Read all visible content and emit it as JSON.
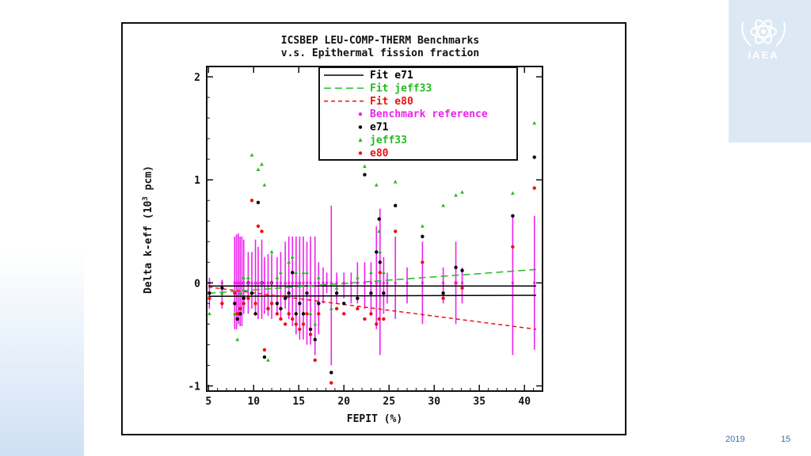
{
  "footer": {
    "year": "2019",
    "page": "15"
  },
  "logo": {
    "text": "IAEA",
    "icon": "iaea-atom-olive-icon"
  },
  "colors": {
    "e71": "#000000",
    "jeff33": "#22bb22",
    "e80": "#ee1111",
    "bench": "#ee22ee"
  },
  "chart_data": {
    "type": "scatter",
    "title": "ICSBEP LEU-COMP-THERM Benchmarks",
    "subtitle": "v.s. Epithermal fission fraction",
    "xlabel": "FEPIT (%)",
    "ylabel": "Delta k-eff (10^3 pcm)",
    "ylabel_parts": {
      "main": "Delta k-eff (10",
      "sup": "3",
      "end": " pcm)"
    },
    "xlim": [
      4.8,
      42
    ],
    "ylim": [
      -1.05,
      2.1
    ],
    "xticks": [
      5,
      10,
      15,
      20,
      25,
      30,
      35,
      40
    ],
    "yticks": [
      -1,
      0,
      1,
      2
    ],
    "legend_position": "top-center",
    "legend": [
      {
        "label": "Fit e71",
        "kind": "line",
        "series": "e71"
      },
      {
        "label": "Fit jeff33",
        "kind": "line",
        "series": "jeff33"
      },
      {
        "label": "Fit e80",
        "kind": "line",
        "series": "e80"
      },
      {
        "label": "Benchmark reference",
        "kind": "marker",
        "series": "bench"
      },
      {
        "label": "e71",
        "kind": "marker",
        "series": "e71"
      },
      {
        "label": "jeff33",
        "kind": "marker",
        "series": "jeff33"
      },
      {
        "label": "e80",
        "kind": "marker",
        "series": "e80"
      }
    ],
    "fits": [
      {
        "name": "Fit e71",
        "series": "e71",
        "dash": "solid",
        "x": [
          5,
          41.3
        ],
        "y": [
          -0.03,
          -0.03
        ]
      },
      {
        "name": "Fit e71",
        "series": "e71",
        "dash": "solid",
        "x": [
          5,
          41.3
        ],
        "y": [
          -0.13,
          -0.12
        ]
      },
      {
        "name": "Fit jeff33",
        "series": "jeff33",
        "dash": "dashed",
        "x": [
          5,
          41.3
        ],
        "y": [
          -0.1,
          0.13
        ]
      },
      {
        "name": "Fit e80",
        "series": "e80",
        "dash": "dotted",
        "x": [
          5,
          41.3
        ],
        "y": [
          -0.04,
          -0.45
        ]
      }
    ],
    "benchmark_errorbars": [
      {
        "x": 5.1,
        "lo": -0.25,
        "hi": 0.05
      },
      {
        "x": 6.5,
        "lo": -0.25,
        "hi": 0.03
      },
      {
        "x": 7.9,
        "lo": -0.45,
        "hi": 0.45
      },
      {
        "x": 8.1,
        "lo": -0.45,
        "hi": 0.47
      },
      {
        "x": 8.3,
        "lo": -0.4,
        "hi": 0.48
      },
      {
        "x": 8.5,
        "lo": -0.42,
        "hi": 0.45
      },
      {
        "x": 8.7,
        "lo": -0.42,
        "hi": 0.45
      },
      {
        "x": 8.9,
        "lo": -0.3,
        "hi": 0.42
      },
      {
        "x": 9.4,
        "lo": -0.3,
        "hi": 0.3
      },
      {
        "x": 9.8,
        "lo": -0.25,
        "hi": 0.3
      },
      {
        "x": 10.2,
        "lo": -0.3,
        "hi": 0.42
      },
      {
        "x": 10.5,
        "lo": -0.35,
        "hi": 0.35
      },
      {
        "x": 10.9,
        "lo": -0.35,
        "hi": 0.42
      },
      {
        "x": 11.2,
        "lo": -0.3,
        "hi": 0.25
      },
      {
        "x": 11.6,
        "lo": -0.32,
        "hi": 0.28
      },
      {
        "x": 12.0,
        "lo": -0.35,
        "hi": 0.28
      },
      {
        "x": 12.6,
        "lo": -0.3,
        "hi": 0.25
      },
      {
        "x": 13.0,
        "lo": -0.35,
        "hi": 0.3
      },
      {
        "x": 13.5,
        "lo": -0.25,
        "hi": 0.4
      },
      {
        "x": 13.9,
        "lo": -0.35,
        "hi": 0.45
      },
      {
        "x": 14.3,
        "lo": -0.42,
        "hi": 0.45
      },
      {
        "x": 14.7,
        "lo": -0.5,
        "hi": 0.45
      },
      {
        "x": 15.1,
        "lo": -0.55,
        "hi": 0.45
      },
      {
        "x": 15.5,
        "lo": -0.55,
        "hi": 0.45
      },
      {
        "x": 15.9,
        "lo": -0.6,
        "hi": 0.4
      },
      {
        "x": 16.3,
        "lo": -0.6,
        "hi": 0.45
      },
      {
        "x": 16.8,
        "lo": -0.7,
        "hi": 0.45
      },
      {
        "x": 17.2,
        "lo": -0.5,
        "hi": 0.2
      },
      {
        "x": 17.7,
        "lo": -0.2,
        "hi": 0.15
      },
      {
        "x": 18.1,
        "lo": -0.1,
        "hi": 0.1
      },
      {
        "x": 18.6,
        "lo": -0.8,
        "hi": 0.75
      },
      {
        "x": 19.2,
        "lo": -0.2,
        "hi": 0.1
      },
      {
        "x": 20.0,
        "lo": -0.15,
        "hi": 0.1
      },
      {
        "x": 20.8,
        "lo": -0.2,
        "hi": 0.1
      },
      {
        "x": 21.5,
        "lo": -0.2,
        "hi": 0.2
      },
      {
        "x": 22.3,
        "lo": -0.25,
        "hi": 0.2
      },
      {
        "x": 23.0,
        "lo": -0.3,
        "hi": 0.2
      },
      {
        "x": 23.6,
        "lo": -0.45,
        "hi": 0.55
      },
      {
        "x": 24.0,
        "lo": -0.7,
        "hi": 0.72
      },
      {
        "x": 24.4,
        "lo": -0.3,
        "hi": 0.25
      },
      {
        "x": 24.8,
        "lo": -0.2,
        "hi": 0.1
      },
      {
        "x": 25.7,
        "lo": -0.35,
        "hi": 0.45
      },
      {
        "x": 27.0,
        "lo": -0.2,
        "hi": 0.15
      },
      {
        "x": 28.7,
        "lo": -0.4,
        "hi": 0.4
      },
      {
        "x": 31.0,
        "lo": -0.2,
        "hi": 0.15
      },
      {
        "x": 32.4,
        "lo": -0.4,
        "hi": 0.4
      },
      {
        "x": 33.1,
        "lo": -0.2,
        "hi": 0.15
      },
      {
        "x": 38.7,
        "lo": -0.7,
        "hi": 0.65
      },
      {
        "x": 41.1,
        "lo": -0.65,
        "hi": 0.65
      }
    ],
    "series": [
      {
        "key": "e71",
        "name": "e71",
        "x": [
          5.1,
          6.5,
          7.9,
          8.2,
          8.5,
          8.9,
          9.4,
          9.8,
          10.2,
          10.5,
          10.9,
          11.2,
          11.6,
          12.0,
          12.6,
          13.0,
          13.5,
          13.9,
          14.3,
          14.7,
          15.1,
          15.5,
          15.9,
          16.3,
          16.8,
          17.2,
          18.6,
          19.2,
          20.0,
          21.5,
          22.3,
          23.0,
          23.6,
          23.9,
          24.0,
          24.4,
          25.7,
          28.7,
          31.0,
          32.4,
          33.1,
          38.7,
          41.1
        ],
        "y": [
          -0.1,
          -0.05,
          -0.2,
          -0.35,
          -0.3,
          -0.15,
          0.0,
          -0.1,
          -0.3,
          0.78,
          0.0,
          -0.72,
          -0.25,
          0.0,
          -0.2,
          -0.25,
          -0.15,
          -0.1,
          0.1,
          -0.3,
          -0.2,
          -0.3,
          -0.1,
          -0.45,
          -0.55,
          -0.2,
          -0.87,
          -0.1,
          -0.2,
          -0.15,
          1.05,
          -0.1,
          0.3,
          0.62,
          0.2,
          -0.1,
          0.75,
          0.45,
          -0.1,
          0.15,
          0.12,
          0.65,
          1.22
        ]
      },
      {
        "key": "jeff33",
        "name": "jeff33",
        "x": [
          5.1,
          6.5,
          7.9,
          8.2,
          8.5,
          8.9,
          9.4,
          9.8,
          10.2,
          10.5,
          10.9,
          11.2,
          11.6,
          12.0,
          12.6,
          13.0,
          13.5,
          13.9,
          14.3,
          14.7,
          15.1,
          15.5,
          15.9,
          16.3,
          16.8,
          17.2,
          18.6,
          19.2,
          20.0,
          21.5,
          22.3,
          23.0,
          23.6,
          23.9,
          24.0,
          24.4,
          25.7,
          28.7,
          31.0,
          32.4,
          33.1,
          38.7,
          41.1
        ],
        "y": [
          -0.3,
          -0.1,
          -0.3,
          -0.55,
          -0.1,
          0.05,
          0.05,
          1.24,
          0.0,
          1.1,
          1.15,
          0.95,
          -0.75,
          0.3,
          0.05,
          0.1,
          0.0,
          0.2,
          0.25,
          0.1,
          0.0,
          0.1,
          0.1,
          -0.3,
          -0.4,
          0.05,
          -0.25,
          -0.05,
          0.0,
          0.05,
          1.13,
          0.1,
          0.95,
          0.5,
          0.3,
          0.1,
          0.98,
          0.55,
          0.75,
          0.85,
          0.88,
          0.87,
          1.55
        ]
      },
      {
        "key": "e80",
        "name": "e80",
        "x": [
          5.1,
          6.5,
          7.9,
          8.2,
          8.5,
          8.9,
          9.4,
          9.8,
          10.2,
          10.5,
          10.9,
          11.2,
          11.6,
          12.0,
          12.6,
          13.0,
          13.5,
          13.9,
          14.3,
          14.7,
          15.1,
          15.5,
          15.9,
          16.3,
          16.8,
          17.2,
          18.6,
          19.2,
          20.0,
          21.5,
          22.3,
          23.0,
          23.6,
          23.9,
          24.0,
          24.4,
          25.7,
          28.7,
          31.0,
          32.4,
          33.1,
          38.7,
          41.1
        ],
        "y": [
          -0.15,
          -0.2,
          -0.1,
          -0.3,
          -0.25,
          -0.2,
          -0.15,
          0.8,
          -0.2,
          0.55,
          0.5,
          -0.65,
          -0.25,
          -0.2,
          -0.3,
          -0.35,
          -0.4,
          -0.3,
          -0.35,
          -0.4,
          -0.45,
          -0.4,
          -0.3,
          -0.5,
          -0.75,
          -0.3,
          -0.97,
          -0.25,
          -0.3,
          -0.25,
          -0.35,
          -0.3,
          -0.4,
          -0.35,
          0.1,
          -0.35,
          0.5,
          0.2,
          -0.15,
          0.0,
          -0.05,
          0.35,
          0.92
        ]
      }
    ]
  }
}
